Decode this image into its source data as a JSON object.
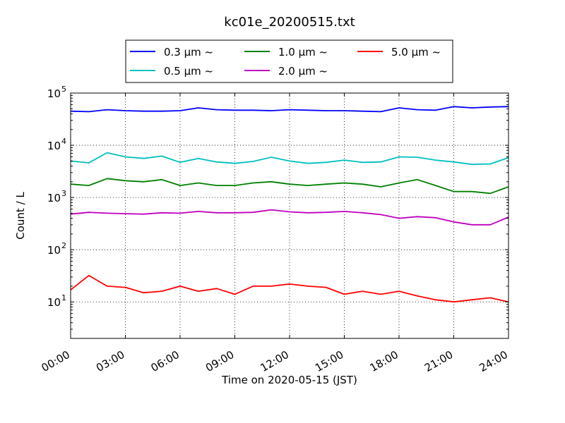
{
  "chart_data": {
    "type": "line",
    "title": "kc01e_20200515.txt",
    "xlabel": "Time on 2020-05-15 (JST)",
    "ylabel": "Count / L",
    "yscale": "log",
    "ylim": [
      2,
      100000
    ],
    "xlim": [
      0,
      24
    ],
    "grid": true,
    "legend_position": "top",
    "x_ticks": [
      {
        "value": 0,
        "label": "00:00"
      },
      {
        "value": 3,
        "label": "03:00"
      },
      {
        "value": 6,
        "label": "06:00"
      },
      {
        "value": 9,
        "label": "09:00"
      },
      {
        "value": 12,
        "label": "12:00"
      },
      {
        "value": 15,
        "label": "15:00"
      },
      {
        "value": 18,
        "label": "18:00"
      },
      {
        "value": 21,
        "label": "21:00"
      },
      {
        "value": 24,
        "label": "24:00"
      }
    ],
    "y_ticks": [
      {
        "value": 10,
        "base": "10",
        "exp": "1"
      },
      {
        "value": 100,
        "base": "10",
        "exp": "2"
      },
      {
        "value": 1000,
        "base": "10",
        "exp": "3"
      },
      {
        "value": 10000,
        "base": "10",
        "exp": "4"
      },
      {
        "value": 100000,
        "base": "10",
        "exp": "5"
      }
    ],
    "x": [
      0,
      1,
      2,
      3,
      4,
      5,
      6,
      7,
      8,
      9,
      10,
      11,
      12,
      13,
      14,
      15,
      16,
      17,
      18,
      19,
      20,
      21,
      22,
      23,
      24
    ],
    "x_units": "hours",
    "series": [
      {
        "name": "0.3 μm ~",
        "color": "#0000ff",
        "values": [
          45000,
          44000,
          48000,
          46000,
          45000,
          45000,
          46000,
          52000,
          48000,
          47000,
          47000,
          46000,
          48000,
          47000,
          46000,
          46000,
          45000,
          44000,
          52000,
          48000,
          47000,
          55000,
          52000,
          54000,
          55000
        ]
      },
      {
        "name": "0.5 μm ~",
        "color": "#00bfbf",
        "values": [
          5000,
          4600,
          7200,
          6000,
          5600,
          6200,
          4700,
          5600,
          4800,
          4500,
          4900,
          5900,
          5000,
          4500,
          4700,
          5200,
          4700,
          4800,
          6000,
          5900,
          5200,
          4800,
          4300,
          4400,
          5800
        ]
      },
      {
        "name": "1.0 μm ~",
        "color": "#008000",
        "values": [
          1800,
          1700,
          2300,
          2100,
          2000,
          2200,
          1700,
          1900,
          1700,
          1700,
          1900,
          2000,
          1800,
          1700,
          1800,
          1900,
          1800,
          1600,
          1900,
          2200,
          1700,
          1300,
          1300,
          1200,
          1600
        ]
      },
      {
        "name": "2.0 μm ~",
        "color": "#bf00bf",
        "values": [
          480,
          520,
          500,
          490,
          480,
          510,
          500,
          540,
          510,
          510,
          520,
          580,
          530,
          510,
          520,
          540,
          510,
          470,
          400,
          430,
          410,
          340,
          300,
          300,
          420
        ]
      },
      {
        "name": "5.0 μm ~",
        "color": "#ff0000",
        "values": [
          17,
          32,
          20,
          19,
          15,
          16,
          20,
          16,
          18,
          14,
          20,
          20,
          22,
          20,
          19,
          14,
          16,
          14,
          16,
          13,
          11,
          10,
          11,
          12,
          10
        ]
      }
    ]
  }
}
